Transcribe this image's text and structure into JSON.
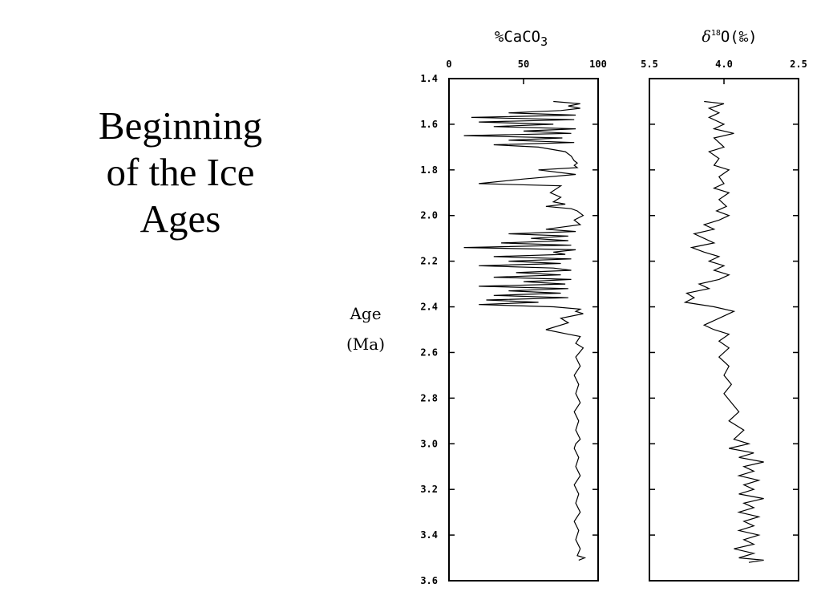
{
  "slide": {
    "title_lines": [
      "Beginning",
      "of the Ice",
      "Ages"
    ]
  },
  "chart_data": [
    {
      "type": "line",
      "title": "%CaCO3",
      "ylabel_lines": [
        "Age",
        "(Ma)"
      ],
      "xlim": [
        0,
        100
      ],
      "ylim": [
        1.4,
        3.6
      ],
      "y_inverted": true,
      "x_ticks": [
        "0",
        "50",
        "100"
      ],
      "y_ticks": [
        "1.4",
        "1.6",
        "1.8",
        "2.0",
        "2.2",
        "2.4",
        "2.6",
        "2.8",
        "3.0",
        "3.2",
        "3.4",
        "3.6"
      ],
      "color": "#000000",
      "points": [
        [
          70,
          1.5
        ],
        [
          88,
          1.51
        ],
        [
          80,
          1.52
        ],
        [
          88,
          1.53
        ],
        [
          75,
          1.54
        ],
        [
          40,
          1.55
        ],
        [
          85,
          1.56
        ],
        [
          15,
          1.57
        ],
        [
          84,
          1.58
        ],
        [
          20,
          1.59
        ],
        [
          70,
          1.6
        ],
        [
          30,
          1.61
        ],
        [
          85,
          1.62
        ],
        [
          50,
          1.63
        ],
        [
          82,
          1.64
        ],
        [
          10,
          1.65
        ],
        [
          76,
          1.66
        ],
        [
          40,
          1.67
        ],
        [
          84,
          1.68
        ],
        [
          30,
          1.69
        ],
        [
          60,
          1.7
        ],
        [
          78,
          1.72
        ],
        [
          82,
          1.74
        ],
        [
          84,
          1.76
        ],
        [
          86,
          1.77
        ],
        [
          84,
          1.78
        ],
        [
          86,
          1.79
        ],
        [
          60,
          1.8
        ],
        [
          85,
          1.82
        ],
        [
          50,
          1.84
        ],
        [
          20,
          1.86
        ],
        [
          75,
          1.87
        ],
        [
          68,
          1.9
        ],
        [
          75,
          1.92
        ],
        [
          70,
          1.94
        ],
        [
          78,
          1.95
        ],
        [
          65,
          1.96
        ],
        [
          82,
          1.97
        ],
        [
          86,
          1.98
        ],
        [
          90,
          2.0
        ],
        [
          84,
          2.02
        ],
        [
          88,
          2.04
        ],
        [
          65,
          2.06
        ],
        [
          85,
          2.07
        ],
        [
          40,
          2.08
        ],
        [
          80,
          2.09
        ],
        [
          55,
          2.1
        ],
        [
          80,
          2.11
        ],
        [
          35,
          2.12
        ],
        [
          82,
          2.13
        ],
        [
          10,
          2.14
        ],
        [
          85,
          2.15
        ],
        [
          70,
          2.16
        ],
        [
          78,
          2.17
        ],
        [
          30,
          2.18
        ],
        [
          82,
          2.19
        ],
        [
          40,
          2.2
        ],
        [
          75,
          2.21
        ],
        [
          20,
          2.22
        ],
        [
          70,
          2.23
        ],
        [
          82,
          2.24
        ],
        [
          45,
          2.25
        ],
        [
          75,
          2.26
        ],
        [
          30,
          2.27
        ],
        [
          82,
          2.28
        ],
        [
          50,
          2.29
        ],
        [
          78,
          2.3
        ],
        [
          20,
          2.31
        ],
        [
          80,
          2.32
        ],
        [
          40,
          2.33
        ],
        [
          75,
          2.34
        ],
        [
          30,
          2.35
        ],
        [
          80,
          2.36
        ],
        [
          25,
          2.37
        ],
        [
          60,
          2.38
        ],
        [
          20,
          2.39
        ],
        [
          70,
          2.4
        ],
        [
          88,
          2.41
        ],
        [
          85,
          2.42
        ],
        [
          90,
          2.43
        ],
        [
          75,
          2.45
        ],
        [
          80,
          2.47
        ],
        [
          65,
          2.5
        ],
        [
          80,
          2.52
        ],
        [
          88,
          2.53
        ],
        [
          85,
          2.56
        ],
        [
          90,
          2.58
        ],
        [
          85,
          2.62
        ],
        [
          88,
          2.66
        ],
        [
          84,
          2.7
        ],
        [
          87,
          2.74
        ],
        [
          85,
          2.78
        ],
        [
          88,
          2.82
        ],
        [
          84,
          2.86
        ],
        [
          87,
          2.9
        ],
        [
          85,
          2.94
        ],
        [
          88,
          2.98
        ],
        [
          85,
          3.0
        ],
        [
          84,
          3.02
        ],
        [
          87,
          3.06
        ],
        [
          85,
          3.1
        ],
        [
          88,
          3.14
        ],
        [
          84,
          3.18
        ],
        [
          87,
          3.22
        ],
        [
          85,
          3.26
        ],
        [
          88,
          3.3
        ],
        [
          84,
          3.34
        ],
        [
          87,
          3.38
        ],
        [
          85,
          3.42
        ],
        [
          88,
          3.46
        ],
        [
          86,
          3.49
        ],
        [
          91,
          3.5
        ],
        [
          87,
          3.51
        ]
      ]
    },
    {
      "type": "line",
      "title": "δ18O(‰)",
      "xlim": [
        5.5,
        2.5
      ],
      "x_inverted": true,
      "ylim": [
        1.4,
        3.6
      ],
      "y_inverted": true,
      "x_ticks": [
        "5.5",
        "4.0",
        "2.5"
      ],
      "color": "#000000",
      "points": [
        [
          4.4,
          1.5
        ],
        [
          4.0,
          1.51
        ],
        [
          4.3,
          1.53
        ],
        [
          4.1,
          1.55
        ],
        [
          4.3,
          1.57
        ],
        [
          4.0,
          1.6
        ],
        [
          4.2,
          1.62
        ],
        [
          3.8,
          1.64
        ],
        [
          4.2,
          1.66
        ],
        [
          4.0,
          1.7
        ],
        [
          4.3,
          1.72
        ],
        [
          4.1,
          1.75
        ],
        [
          4.2,
          1.78
        ],
        [
          3.9,
          1.8
        ],
        [
          4.1,
          1.83
        ],
        [
          4.0,
          1.86
        ],
        [
          4.2,
          1.88
        ],
        [
          3.9,
          1.9
        ],
        [
          4.1,
          1.93
        ],
        [
          3.95,
          1.96
        ],
        [
          4.15,
          1.98
        ],
        [
          3.9,
          2.0
        ],
        [
          4.1,
          2.02
        ],
        [
          4.4,
          2.04
        ],
        [
          4.2,
          2.06
        ],
        [
          4.6,
          2.08
        ],
        [
          4.4,
          2.1
        ],
        [
          4.2,
          2.12
        ],
        [
          4.65,
          2.14
        ],
        [
          4.4,
          2.16
        ],
        [
          4.1,
          2.18
        ],
        [
          4.3,
          2.2
        ],
        [
          4.0,
          2.22
        ],
        [
          4.2,
          2.24
        ],
        [
          3.9,
          2.26
        ],
        [
          4.1,
          2.28
        ],
        [
          4.5,
          2.3
        ],
        [
          4.3,
          2.32
        ],
        [
          4.75,
          2.34
        ],
        [
          4.6,
          2.36
        ],
        [
          4.78,
          2.38
        ],
        [
          4.2,
          2.4
        ],
        [
          3.8,
          2.42
        ],
        [
          4.1,
          2.45
        ],
        [
          4.4,
          2.48
        ],
        [
          4.2,
          2.5
        ],
        [
          3.9,
          2.52
        ],
        [
          4.1,
          2.55
        ],
        [
          3.9,
          2.58
        ],
        [
          4.1,
          2.62
        ],
        [
          3.9,
          2.66
        ],
        [
          4.0,
          2.7
        ],
        [
          3.85,
          2.74
        ],
        [
          4.0,
          2.78
        ],
        [
          3.85,
          2.82
        ],
        [
          3.7,
          2.86
        ],
        [
          3.9,
          2.9
        ],
        [
          3.6,
          2.94
        ],
        [
          3.8,
          2.98
        ],
        [
          3.5,
          3.0
        ],
        [
          3.9,
          3.02
        ],
        [
          3.4,
          3.04
        ],
        [
          3.7,
          3.06
        ],
        [
          3.2,
          3.08
        ],
        [
          3.6,
          3.1
        ],
        [
          3.4,
          3.12
        ],
        [
          3.7,
          3.14
        ],
        [
          3.3,
          3.16
        ],
        [
          3.6,
          3.18
        ],
        [
          3.4,
          3.2
        ],
        [
          3.7,
          3.22
        ],
        [
          3.2,
          3.24
        ],
        [
          3.6,
          3.26
        ],
        [
          3.4,
          3.28
        ],
        [
          3.7,
          3.3
        ],
        [
          3.3,
          3.32
        ],
        [
          3.6,
          3.34
        ],
        [
          3.4,
          3.36
        ],
        [
          3.7,
          3.38
        ],
        [
          3.3,
          3.4
        ],
        [
          3.6,
          3.42
        ],
        [
          3.4,
          3.44
        ],
        [
          3.8,
          3.46
        ],
        [
          3.4,
          3.48
        ],
        [
          3.7,
          3.5
        ],
        [
          3.2,
          3.51
        ],
        [
          3.5,
          3.52
        ]
      ]
    }
  ]
}
